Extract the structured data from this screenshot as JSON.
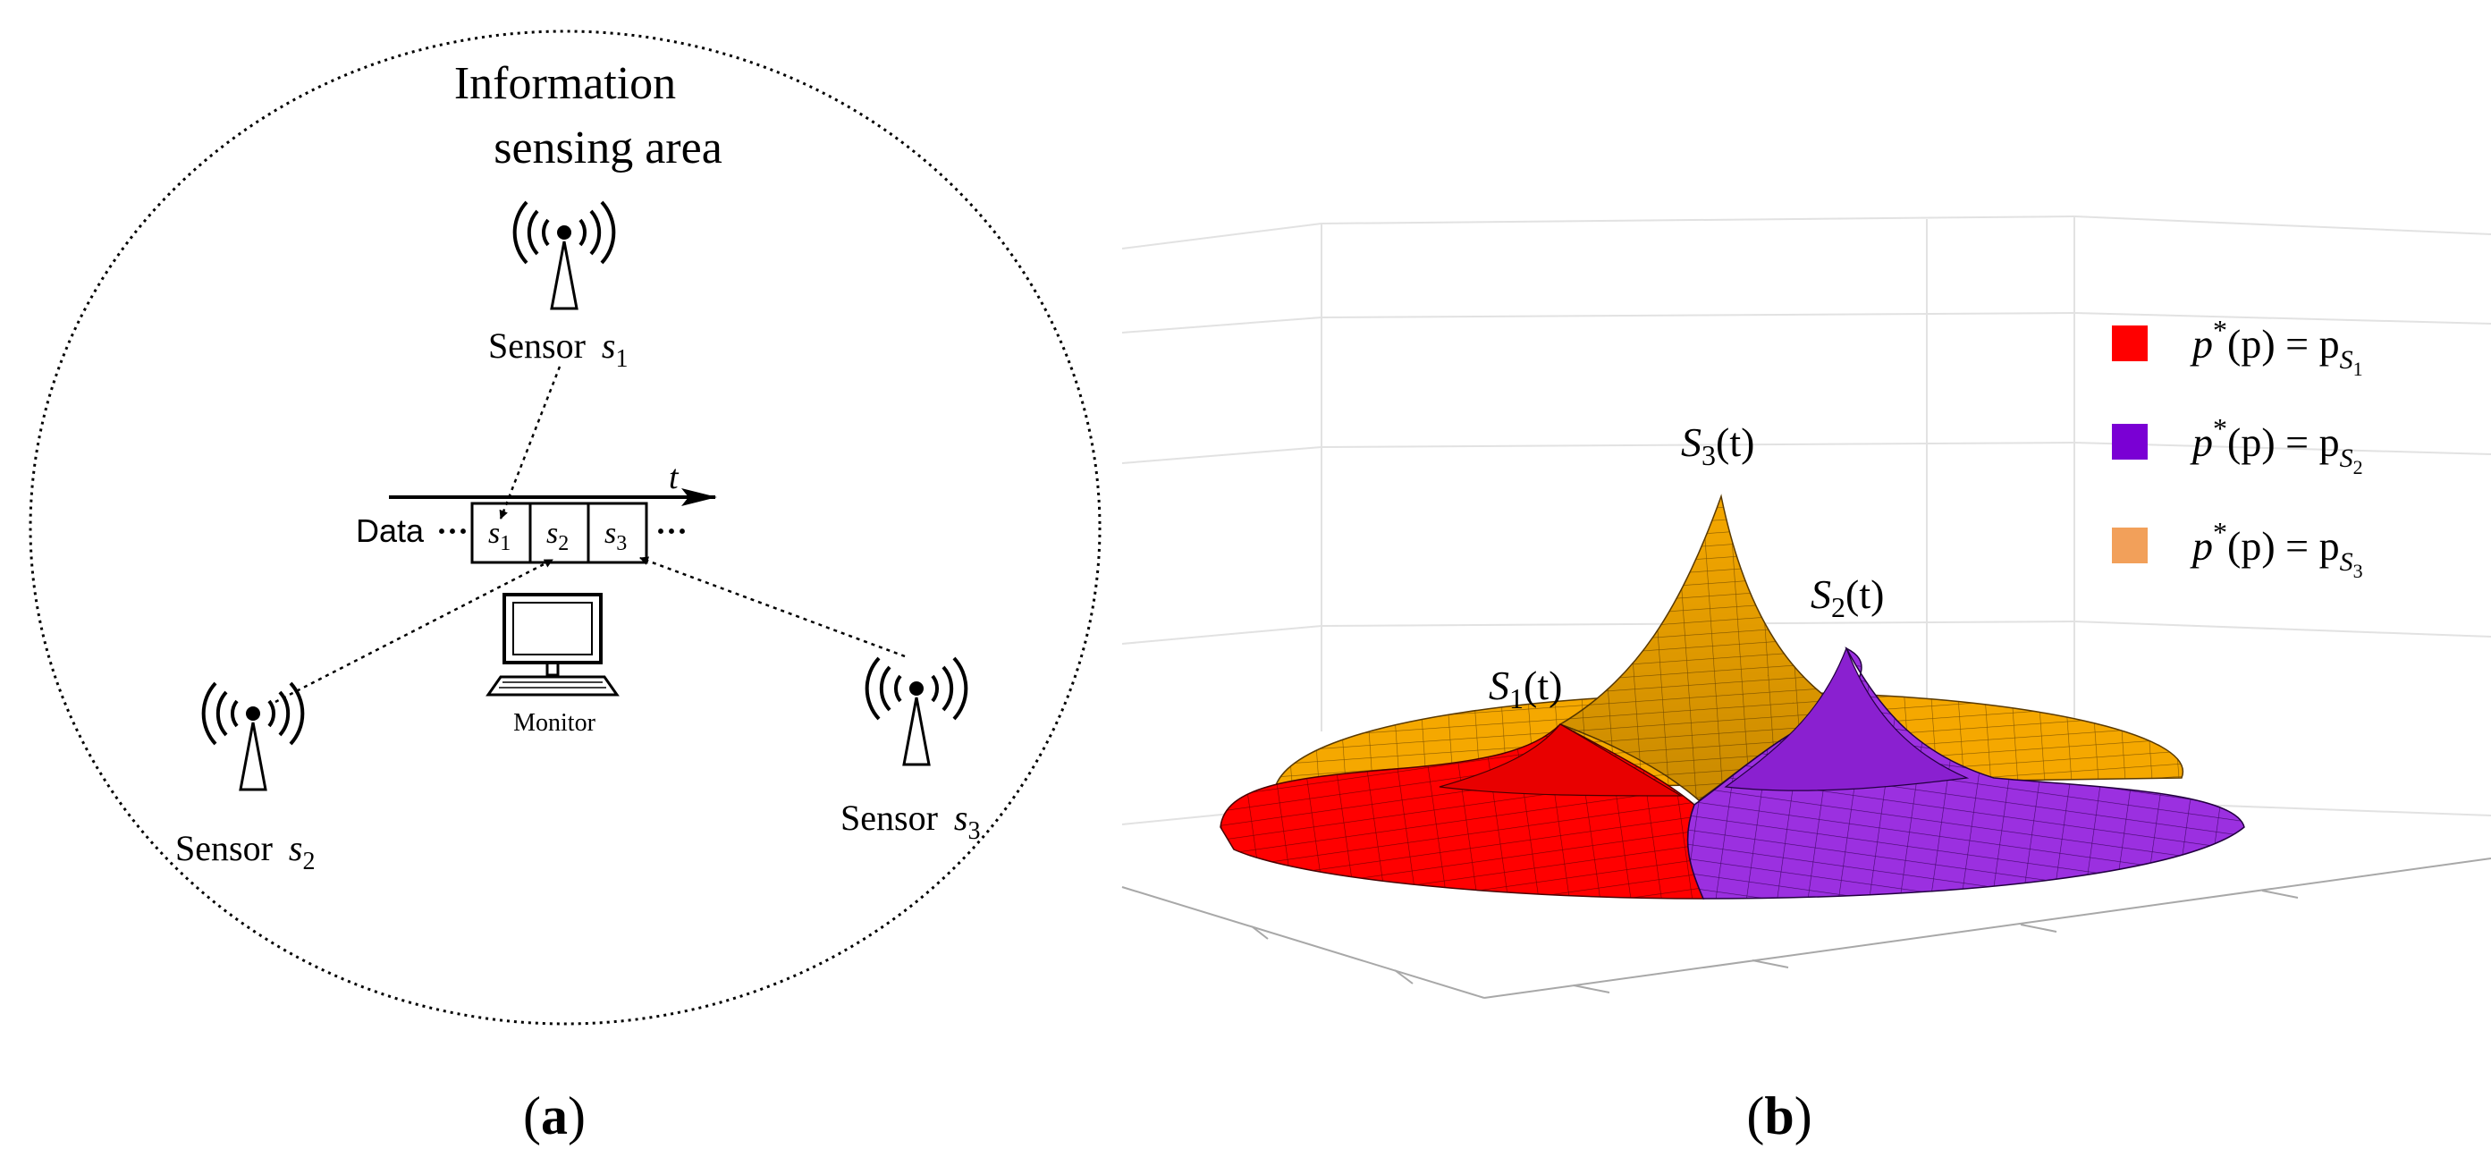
{
  "panel_a": {
    "area_title_line1": "Information",
    "area_title_line2": "sensing area",
    "sensors": [
      {
        "name": "Sensor",
        "sub": "s",
        "index": "1"
      },
      {
        "name": "Sensor",
        "sub": "s",
        "index": "2"
      },
      {
        "name": "Sensor",
        "sub": "s",
        "index": "3"
      }
    ],
    "time_axis_label": "t",
    "data_label": "Data",
    "ellipsis": "···",
    "slots": [
      {
        "sym": "s",
        "index": "1"
      },
      {
        "sym": "s",
        "index": "2"
      },
      {
        "sym": "s",
        "index": "3"
      }
    ],
    "monitor_label": "Monitor",
    "caption": "a"
  },
  "panel_b": {
    "peaks": [
      {
        "sym": "S",
        "index": "1",
        "arg": "(t)"
      },
      {
        "sym": "S",
        "index": "2",
        "arg": "(t)"
      },
      {
        "sym": "S",
        "index": "3",
        "arg": "(t)"
      }
    ],
    "legend": [
      {
        "lhs": "p",
        "sup": "*",
        "mid": "(p) = p",
        "sub1": "S",
        "sub2": "1",
        "color": "#ff0000"
      },
      {
        "lhs": "p",
        "sup": "*",
        "mid": "(p) = p",
        "sub1": "S",
        "sub2": "2",
        "color": "#7a00d4"
      },
      {
        "lhs": "p",
        "sup": "*",
        "mid": "(p) = p",
        "sub1": "S",
        "sub2": "3",
        "color": "#f2a05a"
      }
    ],
    "surface_colors": {
      "red": "#ff0000",
      "purple": "#9b30e0",
      "orange": "#f5a800"
    },
    "caption": "b"
  }
}
